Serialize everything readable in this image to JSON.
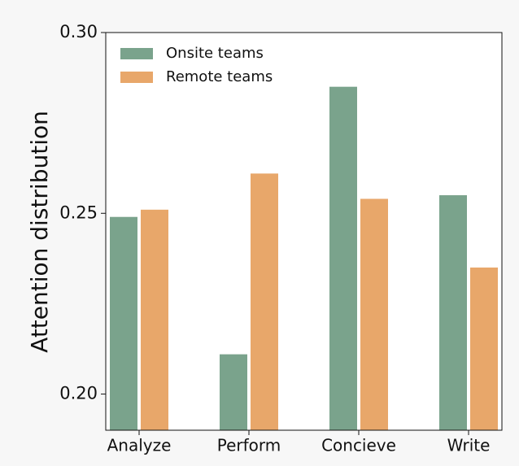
{
  "chart_data": {
    "type": "bar",
    "ylabel": "Attention distribution",
    "categories": [
      "Analyze",
      "Perform",
      "Concieve",
      "Write"
    ],
    "series": [
      {
        "name": "Onsite teams",
        "color": "#7aa38c",
        "values": [
          0.249,
          0.211,
          0.285,
          0.255
        ]
      },
      {
        "name": "Remote teams",
        "color": "#e8a76a",
        "values": [
          0.251,
          0.261,
          0.254,
          0.235
        ]
      }
    ],
    "ylim": [
      0.19,
      0.3
    ],
    "yticks": [
      {
        "value": 0.2,
        "label": "0.20"
      },
      0.25,
      {
        "value": 0.3,
        "label": "0.30"
      }
    ],
    "legend": "upper left"
  }
}
